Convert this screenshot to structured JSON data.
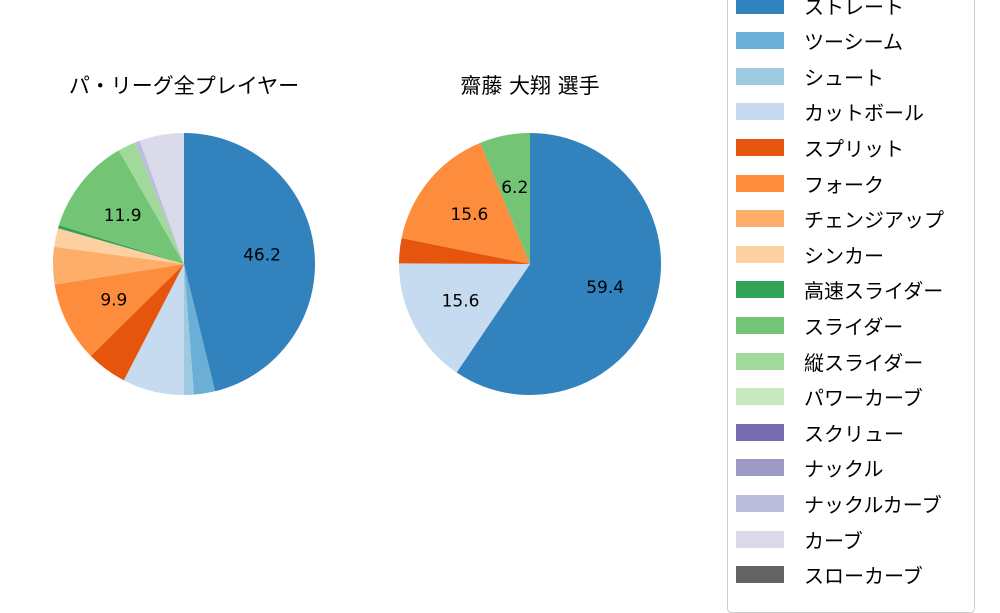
{
  "chart_data": [
    {
      "type": "pie",
      "title": "パ・リーグ全プレイヤー",
      "categories": [
        "ストレート",
        "ツーシーム",
        "シュート",
        "カットボール",
        "スプリット",
        "フォーク",
        "チェンジアップ",
        "シンカー",
        "高速スライダー",
        "スライダー",
        "縦スライダー",
        "ナックルカーブ",
        "カーブ"
      ],
      "values": [
        46.2,
        2.6,
        1.2,
        7.6,
        5.0,
        9.9,
        4.6,
        2.3,
        0.4,
        11.9,
        2.2,
        0.6,
        5.5
      ],
      "labeled_values": {
        "ストレート": "46.2",
        "フォーク": "9.9",
        "スライダー": "11.9"
      },
      "start_angle": 90,
      "direction": "clockwise"
    },
    {
      "type": "pie",
      "title": "齋藤 大翔  選手",
      "categories": [
        "ストレート",
        "カットボール",
        "スプリット",
        "フォーク",
        "スライダー"
      ],
      "values": [
        59.4,
        15.6,
        3.1,
        15.6,
        6.2
      ],
      "labeled_values": {
        "ストレート": "59.4",
        "カットボール": "15.6",
        "フォーク": "15.6",
        "スライダー": "6.2"
      },
      "start_angle": 90,
      "direction": "clockwise"
    }
  ],
  "titles": {
    "left": "パ・リーグ全プレイヤー",
    "right": "齋藤 大翔  選手"
  },
  "legend": {
    "position": "right",
    "items": [
      {
        "label": "ストレート",
        "color": "#3182bd"
      },
      {
        "label": "ツーシーム",
        "color": "#6baed6"
      },
      {
        "label": "シュート",
        "color": "#9ecae1"
      },
      {
        "label": "カットボール",
        "color": "#c6dbef"
      },
      {
        "label": "スプリット",
        "color": "#e6550d"
      },
      {
        "label": "フォーク",
        "color": "#fd8d3c"
      },
      {
        "label": "チェンジアップ",
        "color": "#fdae6b"
      },
      {
        "label": "シンカー",
        "color": "#fdd0a2"
      },
      {
        "label": "高速スライダー",
        "color": "#31a354"
      },
      {
        "label": "スライダー",
        "color": "#74c476"
      },
      {
        "label": "縦スライダー",
        "color": "#a1d99b"
      },
      {
        "label": "パワーカーブ",
        "color": "#c7e9c0"
      },
      {
        "label": "スクリュー",
        "color": "#756bb1"
      },
      {
        "label": "ナックル",
        "color": "#9e9ac8"
      },
      {
        "label": "ナックルカーブ",
        "color": "#bcbddc"
      },
      {
        "label": "カーブ",
        "color": "#dadaeb"
      },
      {
        "label": "スローカーブ",
        "color": "#636363"
      }
    ]
  }
}
